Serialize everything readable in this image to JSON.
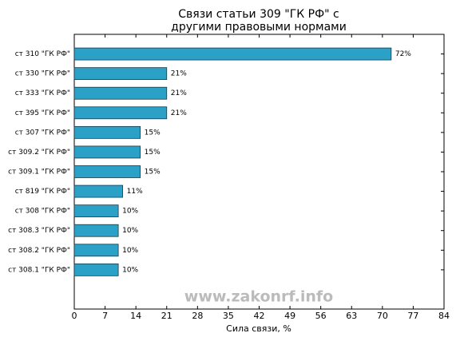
{
  "chart_data": {
    "type": "barh",
    "title": [
      "Связи статьи 309 \"ГК РФ\" с",
      "другими правовыми нормами"
    ],
    "xlabel": "Сила связи, %",
    "categories": [
      "ст 310 \"ГК РФ\"",
      "ст 330 \"ГК РФ\"",
      "ст 333 \"ГК РФ\"",
      "ст 395 \"ГК РФ\"",
      "ст 307 \"ГК РФ\"",
      "ст 309.2 \"ГК РФ\"",
      "ст 309.1 \"ГК РФ\"",
      "ст 819 \"ГК РФ\"",
      "ст 308 \"ГК РФ\"",
      "ст 308.3 \"ГК РФ\"",
      "ст 308.2 \"ГК РФ\"",
      "ст 308.1 \"ГК РФ\""
    ],
    "values": [
      72,
      21,
      21,
      21,
      15,
      15,
      15,
      11,
      10,
      10,
      10,
      10
    ],
    "value_labels": [
      "72%",
      "21%",
      "21%",
      "21%",
      "15%",
      "15%",
      "15%",
      "11%",
      "10%",
      "10%",
      "10%",
      "10%"
    ],
    "color": "#2ba1c8",
    "xlim": [
      0,
      84
    ],
    "xticks": [
      0,
      7,
      14,
      21,
      28,
      35,
      42,
      49,
      56,
      63,
      70,
      77,
      84
    ],
    "annotation": "www.zakonrf.info"
  }
}
